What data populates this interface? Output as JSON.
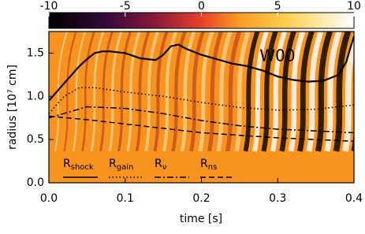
{
  "chart_data": {
    "type": "line",
    "annotation": "W00",
    "xlabel": "time [s]",
    "ylabel": "radius [10⁷ cm]",
    "xlim": [
      0,
      0.4
    ],
    "ylim": [
      0,
      1.75
    ],
    "xticks": [
      {
        "value": 0,
        "label": "0.0"
      },
      0.1,
      0.2,
      0.3,
      0.4
    ],
    "yticks": [
      {
        "value": 0,
        "label": "0.0"
      },
      0.5,
      {
        "value": 1,
        "label": "1.0"
      },
      1.5
    ],
    "colorbar": {
      "lim": [
        -10,
        10
      ],
      "ticks": [
        -10,
        -5,
        0,
        5,
        10
      ]
    },
    "series": [
      {
        "name": "Rshock",
        "color": "#000000",
        "dash": "solid",
        "x": [
          0,
          0.01,
          0.02,
          0.03,
          0.04,
          0.05,
          0.06,
          0.07,
          0.08,
          0.1,
          0.12,
          0.14,
          0.15,
          0.16,
          0.17,
          0.18,
          0.2,
          0.22,
          0.24,
          0.26,
          0.28,
          0.3,
          0.32,
          0.34,
          0.36,
          0.38,
          0.39,
          0.4
        ],
        "values": [
          0.95,
          1.05,
          1.15,
          1.25,
          1.35,
          1.43,
          1.5,
          1.52,
          1.52,
          1.5,
          1.44,
          1.42,
          1.48,
          1.58,
          1.6,
          1.55,
          1.48,
          1.43,
          1.38,
          1.35,
          1.3,
          1.23,
          1.19,
          1.17,
          1.18,
          1.25,
          1.4,
          1.7
        ]
      },
      {
        "name": "Rgain",
        "color": "#000000",
        "dash": "dotted",
        "x": [
          0,
          0.02,
          0.04,
          0.06,
          0.1,
          0.15,
          0.2,
          0.25,
          0.3,
          0.35,
          0.4
        ],
        "values": [
          0.8,
          1.0,
          1.1,
          1.1,
          1.05,
          1.0,
          0.93,
          0.87,
          0.84,
          0.85,
          0.9
        ]
      },
      {
        "name": "Rν",
        "color": "#000000",
        "dash": "dashdot",
        "x": [
          0,
          0.05,
          0.1,
          0.15,
          0.2,
          0.25,
          0.3,
          0.35,
          0.4
        ],
        "values": [
          0.75,
          0.88,
          0.86,
          0.8,
          0.72,
          0.66,
          0.62,
          0.6,
          0.58
        ]
      },
      {
        "name": "Rns",
        "color": "#000000",
        "dash": "dashed",
        "x": [
          0,
          0.05,
          0.1,
          0.15,
          0.2,
          0.25,
          0.3,
          0.35,
          0.4
        ],
        "values": [
          0.77,
          0.73,
          0.68,
          0.63,
          0.58,
          0.55,
          0.52,
          0.5,
          0.48
        ]
      }
    ]
  }
}
